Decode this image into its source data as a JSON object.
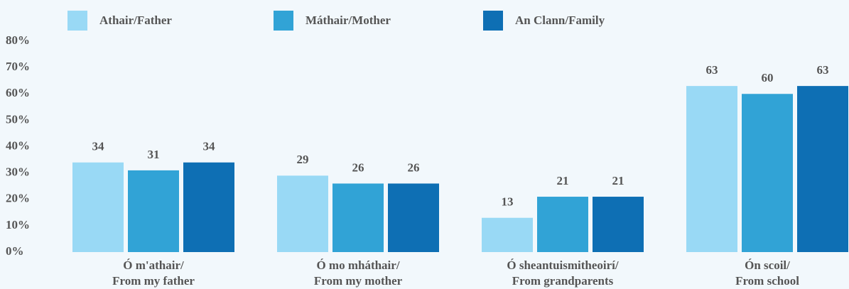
{
  "chart_data": {
    "type": "bar",
    "categories": [
      [
        "Ó m'athair/",
        "From my father"
      ],
      [
        "Ó mo mháthair/",
        "From my mother"
      ],
      [
        "Ó sheantuismitheoirí/",
        "From grandparents"
      ],
      [
        "Ón scoil/",
        "From school"
      ]
    ],
    "series": [
      {
        "name": "Athair/Father",
        "color": "#99d9f5",
        "values": [
          34,
          29,
          13,
          63
        ]
      },
      {
        "name": "Máthair/Mother",
        "color": "#31a3d6",
        "values": [
          31,
          26,
          21,
          60
        ]
      },
      {
        "name": "An Clann/Family",
        "color": "#0e6fb4",
        "values": [
          34,
          26,
          21,
          63
        ]
      }
    ],
    "ylim": [
      0,
      80
    ],
    "yticks": [
      {
        "value": 0,
        "label": "0%"
      },
      {
        "value": 10,
        "label": "10%"
      },
      {
        "value": 20,
        "label": "20%"
      },
      {
        "value": 30,
        "label": "30%"
      },
      {
        "value": 40,
        "label": "40%"
      },
      {
        "value": 50,
        "label": "50%"
      },
      {
        "value": 60,
        "label": "60%"
      },
      {
        "value": 70,
        "label": "70%"
      },
      {
        "value": 80,
        "label": "80%"
      }
    ],
    "legend": "top"
  }
}
